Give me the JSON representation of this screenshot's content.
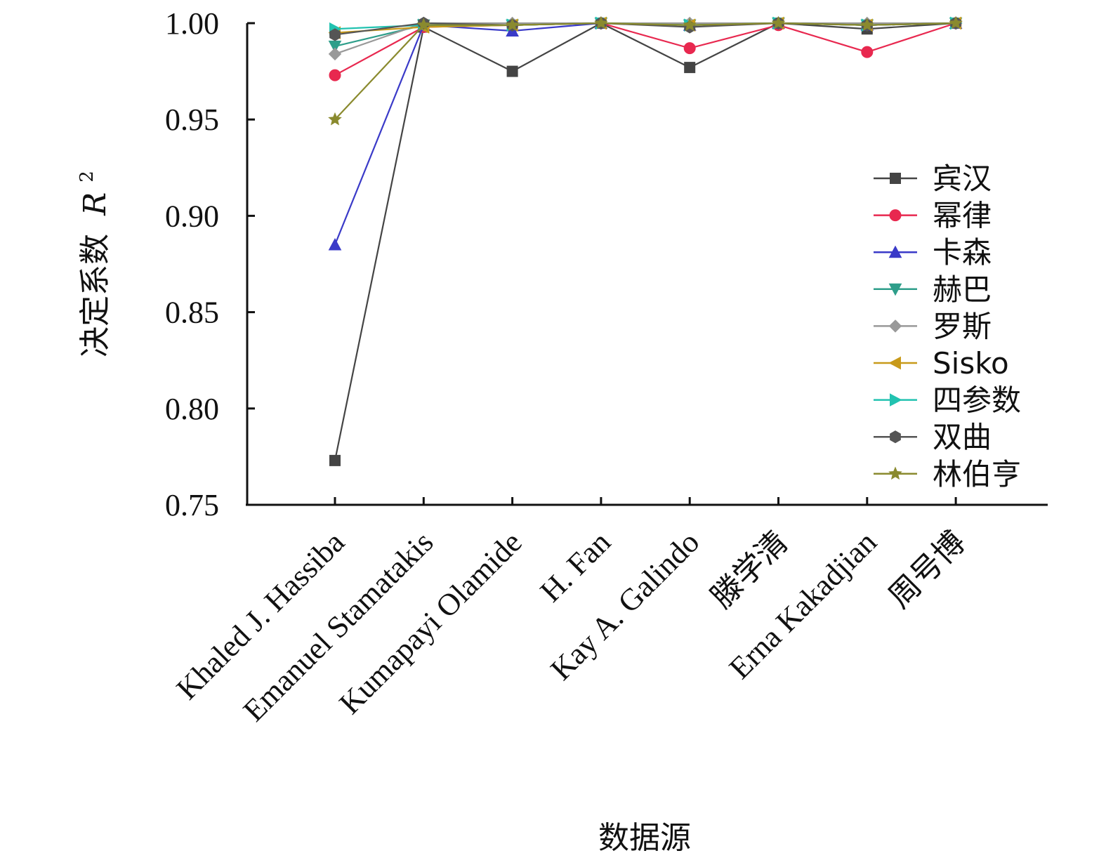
{
  "chart_data": {
    "type": "line",
    "xlabel": "数据源",
    "ylabel": "决定系数",
    "ylabel_symbol": "R",
    "ylabel_superscript": "2",
    "ylim": [
      0.75,
      1.0
    ],
    "yticks": [
      0.75,
      0.8,
      0.85,
      0.9,
      0.95,
      1.0
    ],
    "ytick_labels": [
      "0.75",
      "0.80",
      "0.85",
      "0.90",
      "0.95",
      "1.00"
    ],
    "categories": [
      "Khaled J. Hassiba",
      "Emanuel Stamatakis",
      "Kumapayi Olamide",
      "H. Fan",
      "Kay A. Galindo",
      "滕学清",
      "Erna Kakadjian",
      "周号博"
    ],
    "legend_position": "right",
    "grid": false,
    "series": [
      {
        "name": "宾汉",
        "color": "#444444",
        "marker": "square",
        "values": [
          0.773,
          0.998,
          0.975,
          1.0,
          0.977,
          1.0,
          0.997,
          1.0
        ]
      },
      {
        "name": "幂律",
        "color": "#e8284f",
        "marker": "circle",
        "values": [
          0.973,
          0.998,
          0.999,
          1.0,
          0.987,
          0.999,
          0.985,
          1.0
        ]
      },
      {
        "name": "卡森",
        "color": "#3a3ac8",
        "marker": "triangle-up",
        "values": [
          0.885,
          0.999,
          0.996,
          1.0,
          0.999,
          1.0,
          0.999,
          1.0
        ]
      },
      {
        "name": "赫巴",
        "color": "#2e9e8a",
        "marker": "triangle-down",
        "values": [
          0.988,
          0.999,
          0.999,
          1.0,
          0.999,
          1.0,
          0.999,
          1.0
        ]
      },
      {
        "name": "罗斯",
        "color": "#999999",
        "marker": "diamond",
        "values": [
          0.984,
          1.0,
          1.0,
          1.0,
          1.0,
          1.0,
          1.0,
          1.0
        ]
      },
      {
        "name": "Sisko",
        "color": "#c89a1a",
        "marker": "triangle-left",
        "values": [
          0.995,
          0.998,
          0.999,
          1.0,
          0.999,
          1.0,
          0.999,
          1.0
        ]
      },
      {
        "name": "四参数",
        "color": "#22c2b0",
        "marker": "triangle-right",
        "values": [
          0.997,
          0.999,
          0.999,
          1.0,
          0.999,
          1.0,
          0.999,
          1.0
        ]
      },
      {
        "name": "双曲",
        "color": "#555555",
        "marker": "hexagon",
        "values": [
          0.994,
          1.0,
          0.999,
          1.0,
          0.998,
          1.0,
          0.999,
          1.0
        ]
      },
      {
        "name": "林伯亨",
        "color": "#8a8a2e",
        "marker": "star",
        "values": [
          0.95,
          0.999,
          0.999,
          1.0,
          0.999,
          1.0,
          0.999,
          1.0
        ]
      }
    ]
  }
}
